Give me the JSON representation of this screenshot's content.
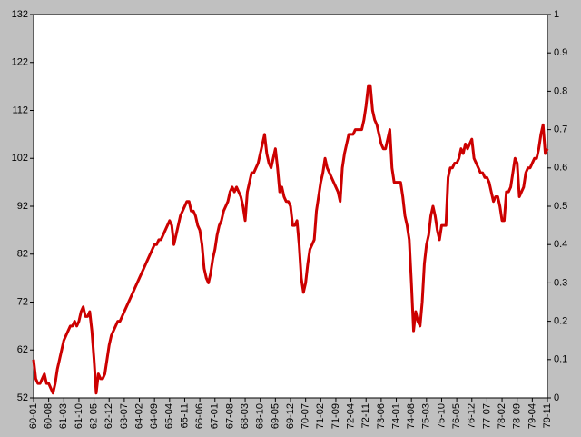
{
  "chart_data": {
    "type": "line",
    "categories": [
      "60-01",
      null,
      null,
      null,
      null,
      null,
      null,
      "60-08",
      null,
      null,
      null,
      null,
      null,
      null,
      "61-03",
      null,
      null,
      null,
      null,
      null,
      null,
      "61-10",
      null,
      null,
      null,
      null,
      null,
      null,
      "62-05",
      null,
      null,
      null,
      null,
      null,
      null,
      "62-12",
      null,
      null,
      null,
      null,
      null,
      null,
      "63-07",
      null,
      null,
      null,
      null,
      null,
      null,
      "64-02",
      null,
      null,
      null,
      null,
      null,
      null,
      "64-09",
      null,
      null,
      null,
      null,
      null,
      null,
      "65-04",
      null,
      null,
      null,
      null,
      null,
      null,
      "65-11",
      null,
      null,
      null,
      null,
      null,
      null,
      "66-06",
      null,
      null,
      null,
      null,
      null,
      null,
      "67-01",
      null,
      null,
      null,
      null,
      null,
      null,
      "67-08",
      null,
      null,
      null,
      null,
      null,
      null,
      "68-03",
      null,
      null,
      null,
      null,
      null,
      null,
      "68-10",
      null,
      null,
      null,
      null,
      null,
      null,
      "69-05",
      null,
      null,
      null,
      null,
      null,
      null,
      "69-12",
      null,
      null,
      null,
      null,
      null,
      null,
      "70-07",
      null,
      null,
      null,
      null,
      null,
      null,
      "71-02",
      null,
      null,
      null,
      null,
      null,
      null,
      "71-09",
      null,
      null,
      null,
      null,
      null,
      null,
      "72-04",
      null,
      null,
      null,
      null,
      null,
      null,
      "72-11",
      null,
      null,
      null,
      null,
      null,
      null,
      "73-06",
      null,
      null,
      null,
      null,
      null,
      null,
      "74-01",
      null,
      null,
      null,
      null,
      null,
      null,
      "74-08",
      null,
      null,
      null,
      null,
      null,
      null,
      "75-03",
      null,
      null,
      null,
      null,
      null,
      null,
      "75-10",
      null,
      null,
      null,
      null,
      null,
      null,
      "76-05",
      null,
      null,
      null,
      null,
      null,
      null,
      "76-12",
      null,
      null,
      null,
      null,
      null,
      null,
      "77-07",
      null,
      null,
      null,
      null,
      null,
      null,
      "78-02",
      null,
      null,
      null,
      null,
      null,
      null,
      "78-09",
      null,
      null,
      null,
      null,
      null,
      null,
      "79-04",
      null,
      null,
      null,
      null,
      null,
      null,
      "79-11"
    ],
    "series": [
      {
        "color": "#cc0000",
        "values": [
          60,
          56,
          55,
          55,
          56,
          57,
          55,
          55,
          54,
          53,
          55,
          58,
          60,
          62,
          64,
          65,
          66,
          67,
          67,
          68,
          67,
          68,
          70,
          71,
          69,
          69,
          70,
          66,
          60,
          53,
          57,
          56,
          56,
          57,
          60,
          63,
          65,
          66,
          67,
          68,
          68,
          69,
          70,
          71,
          72,
          73,
          74,
          75,
          76,
          77,
          78,
          79,
          80,
          81,
          82,
          83,
          84,
          84,
          85,
          85,
          86,
          87,
          88,
          89,
          88,
          84,
          86,
          88,
          90,
          91,
          92,
          93,
          93,
          91,
          91,
          90,
          88,
          87,
          84,
          79,
          77,
          76,
          78,
          81,
          83,
          86,
          88,
          89,
          91,
          92,
          93,
          95,
          96,
          95,
          96,
          95,
          94,
          92,
          89,
          95,
          97,
          99,
          99,
          100,
          101,
          103,
          105,
          107,
          103,
          101,
          100,
          102,
          104,
          100,
          95,
          96,
          94,
          93,
          93,
          92,
          88,
          88,
          89,
          84,
          77,
          74,
          76,
          80,
          83,
          84,
          85,
          91,
          94,
          97,
          99,
          102,
          100,
          99,
          98,
          97,
          96,
          95,
          93,
          100,
          103,
          105,
          107,
          107,
          107,
          108,
          108,
          108,
          108,
          110,
          113,
          117,
          117,
          112,
          110,
          109,
          107,
          105,
          104,
          104,
          106,
          108,
          100,
          97,
          97,
          97,
          97,
          94,
          90,
          88,
          85,
          76,
          66,
          70,
          68,
          67,
          72,
          80,
          84,
          86,
          90,
          92,
          90,
          87,
          85,
          88,
          88,
          88,
          98,
          100,
          100,
          101,
          101,
          102,
          104,
          103,
          105,
          104,
          105,
          106,
          102,
          101,
          100,
          99,
          99,
          98,
          98,
          97,
          95,
          93,
          94,
          94,
          92,
          89,
          89,
          95,
          95,
          96,
          99,
          102,
          101,
          94,
          95,
          96,
          99,
          100,
          100,
          101,
          102,
          102,
          104,
          107,
          109,
          103,
          104
        ]
      }
    ],
    "ylim": [
      52,
      132
    ],
    "yticks": [
      52,
      62,
      72,
      82,
      92,
      102,
      112,
      122,
      132
    ],
    "y2lim": [
      0,
      1
    ],
    "y2ticks": [
      0,
      0.1,
      0.2,
      0.3,
      0.4,
      0.5,
      0.6,
      0.7,
      0.8,
      0.9,
      1
    ]
  }
}
